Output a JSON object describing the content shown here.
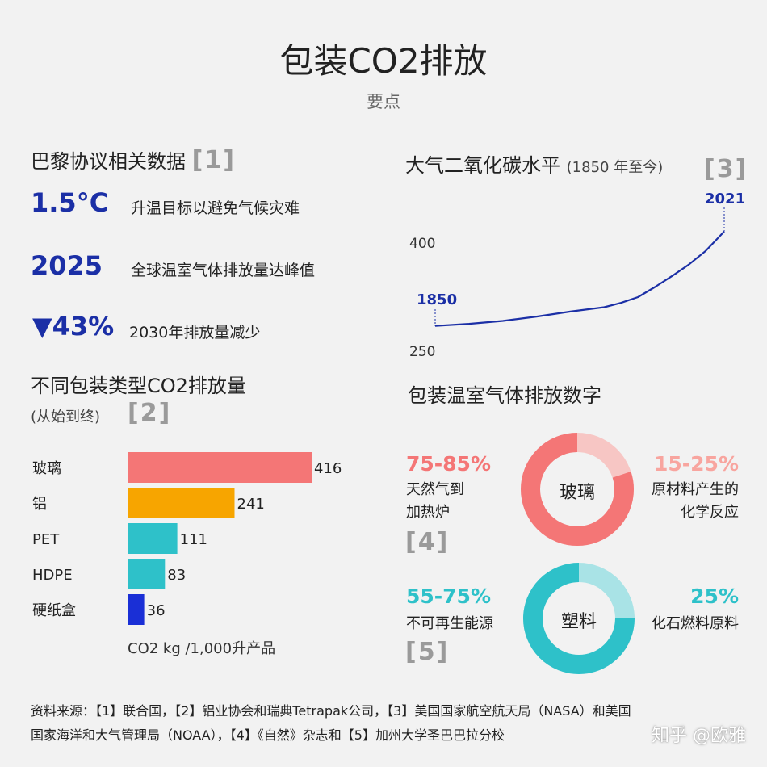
{
  "header": {
    "title": "包装CO2排放",
    "subtitle": "要点"
  },
  "paris": {
    "title": "巴黎协议相关数据",
    "ref": "[1]",
    "stats": [
      {
        "value": "1.5°C",
        "desc": "升温目标以避免气候灾难"
      },
      {
        "value": "2025",
        "desc": "全球温室气体排放量达峰值"
      },
      {
        "value": "▼43%",
        "desc": "2030年排放量减少"
      }
    ]
  },
  "co2_chart_title": {
    "main": "大气二氧化碳水平",
    "range": "(1850 年至今)",
    "ref": "[3]"
  },
  "packaging_title": {
    "main": "不同包装类型CO2排放量",
    "sub": "(从始到终)",
    "ref": "[2]",
    "unit": "CO2 kg /1,000升产品"
  },
  "ghg": {
    "title": "包装温室气体排放数字",
    "glass": {
      "label": "玻璃",
      "left_pct": "75-85%",
      "left_desc": [
        "天然气到",
        "加热炉"
      ],
      "right_pct": "15-25%",
      "right_desc": [
        "原材料产生的",
        "化学反应"
      ],
      "ref": "[4]",
      "main_share": 0.8,
      "main_color": "#f47676",
      "light_color": "#f7c6c4"
    },
    "plastic": {
      "label": "塑料",
      "left_pct": "55-75%",
      "left_desc": [
        "不可再生能源"
      ],
      "right_pct": "25%",
      "right_desc": [
        "化石燃料原料"
      ],
      "ref": "[5]",
      "main_share": 0.75,
      "main_color": "#2ec1c9",
      "light_color": "#a9e3e6"
    }
  },
  "chart_data": [
    {
      "type": "line",
      "title": "大气二氧化碳水平 (1850 年至今)",
      "x": [
        1850,
        1870,
        1890,
        1910,
        1930,
        1950,
        1960,
        1970,
        1980,
        1990,
        2000,
        2010,
        2021
      ],
      "y": [
        285,
        288,
        292,
        298,
        305,
        311,
        317,
        325,
        339,
        354,
        370,
        389,
        416
      ],
      "ylim": [
        250,
        420
      ],
      "yticks": [
        "400",
        "250"
      ],
      "annotations": [
        "1850",
        "2021"
      ],
      "color": "#1b2fa6"
    },
    {
      "type": "bar",
      "orientation": "horizontal",
      "title": "不同包装类型CO2排放量",
      "categories": [
        "玻璃",
        "铝",
        "PET",
        "HDPE",
        "硬纸盒"
      ],
      "values": [
        416,
        241,
        111,
        83,
        36
      ],
      "value_labels": [
        "416",
        "241",
        "111",
        "83",
        "36"
      ],
      "colors": [
        "#f47676",
        "#f7a500",
        "#2ec1c9",
        "#2ec1c9",
        "#1a2fd6"
      ],
      "xlabel": "CO2 kg /1,000升产品",
      "xlim": [
        0,
        416
      ]
    }
  ],
  "footnote": {
    "line1": "资料来源：【1】联合国，【2】铝业协会和瑞典Tetrapak公司，【3】美国国家航空航天局（NASA）和美国",
    "line2": "国家海洋和大气管理局（NOAA），【4】《自然》杂志和【5】加州大学圣巴巴拉分校"
  },
  "watermark": "知乎 @欧雅"
}
